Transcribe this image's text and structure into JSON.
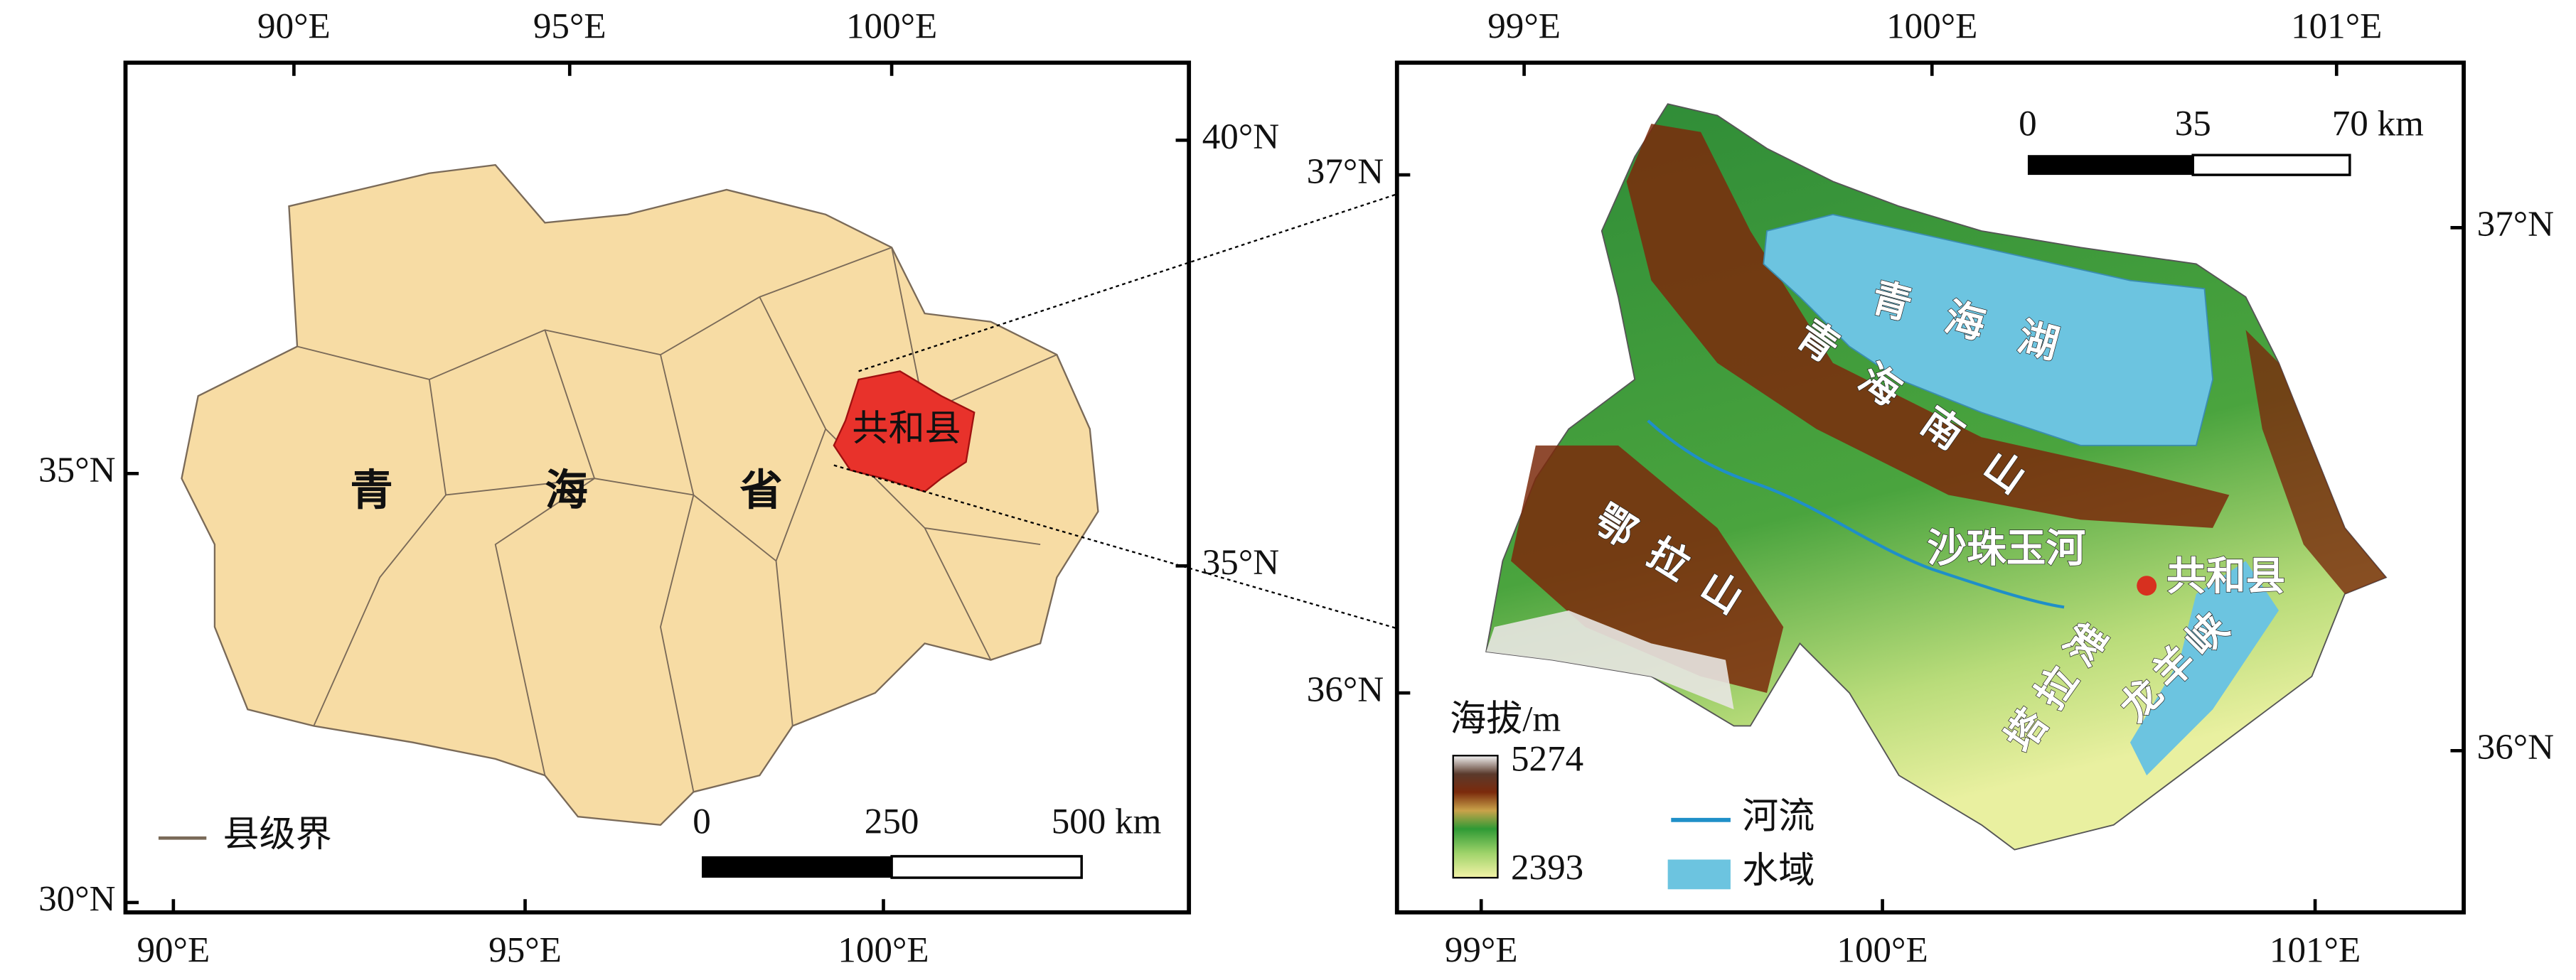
{
  "left_map": {
    "top_ticks": [
      "90°E",
      "95°E",
      "100°E"
    ],
    "bottom_ticks": [
      "90°E",
      "95°E",
      "100°E"
    ],
    "left_ticks": [
      "35°N",
      "30°N"
    ],
    "right_ticks": [
      "40°N",
      "35°N"
    ],
    "province_label": "青海省",
    "county_label": "共和县",
    "legend": "县级界",
    "scale_labels": [
      "0",
      "250",
      "500 km"
    ]
  },
  "right_map": {
    "top_ticks": [
      "99°E",
      "100°E",
      "101°E"
    ],
    "bottom_ticks": [
      "99°E",
      "100°E",
      "101°E"
    ],
    "left_ticks": [
      "37°N",
      "36°N"
    ],
    "right_ticks": [
      "37°N",
      "36°N"
    ],
    "labels": {
      "lake": "青海湖",
      "mountain_1": "青海南山",
      "mountain_2": "鄂拉山",
      "river": "沙珠玉河",
      "county": "共和县",
      "basin": "塔拉滩",
      "gorge": "龙羊峡"
    },
    "legend": {
      "title": "海拔/m",
      "max": "5274",
      "min": "2393",
      "river": "河流",
      "water": "水域"
    },
    "scale_labels": [
      "0",
      "35",
      "70 km"
    ]
  }
}
